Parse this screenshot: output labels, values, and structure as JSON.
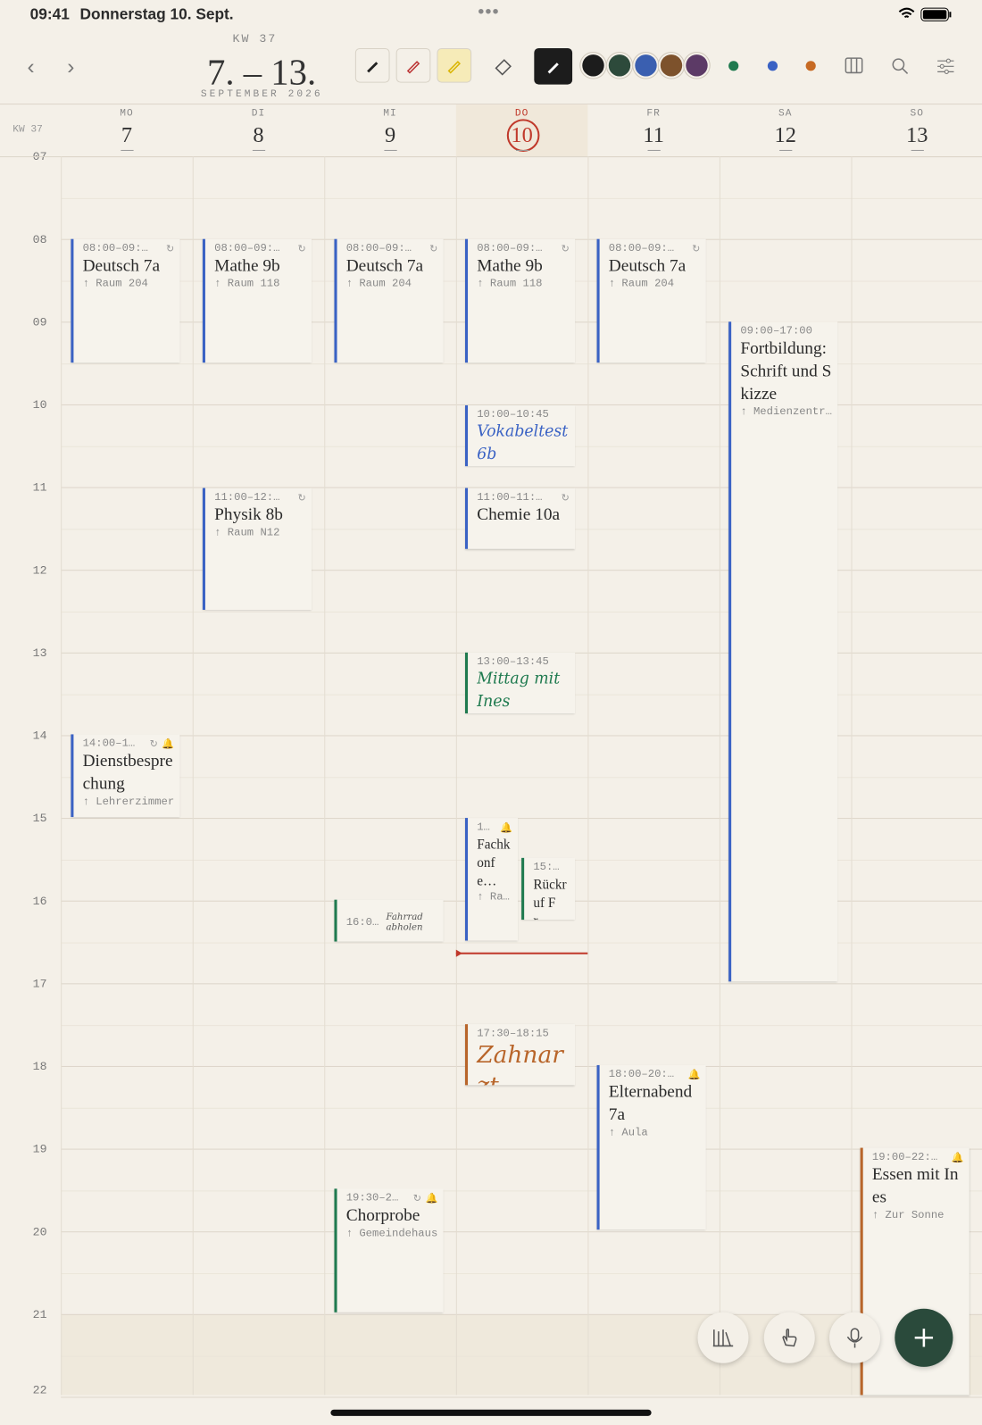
{
  "status_bar": {
    "time": "09:41",
    "date": "Donnerstag 10. Sept."
  },
  "header": {
    "week": "KW 37",
    "range": "7. – 13.",
    "month": "SEPTEMBER 2026"
  },
  "week_label": "KW 37",
  "hours": [
    "07",
    "08",
    "09",
    "10",
    "11",
    "12",
    "13",
    "14",
    "15",
    "16",
    "17",
    "18",
    "19",
    "20",
    "21",
    "22"
  ],
  "days": [
    {
      "weekday": "MO",
      "date": "7",
      "events": [
        {
          "time": "08:00–09:…",
          "title": "Deutsch 7a",
          "location": "Raum 204",
          "color": "#3a62c4",
          "repeat": true
        },
        {
          "time": "14:00–1…",
          "title": "Dienstbesprechung",
          "location": "Lehrerzimmer",
          "color": "#3a62c4",
          "repeat": true,
          "alarm": true
        }
      ]
    },
    {
      "weekday": "DI",
      "date": "8",
      "events": [
        {
          "time": "08:00–09:…",
          "title": "Mathe 9b",
          "location": "Raum 118",
          "color": "#3a62c4",
          "repeat": true
        },
        {
          "time": "11:00–12:…",
          "title": "Physik 8b",
          "location": "Raum N12",
          "color": "#3a62c4",
          "repeat": true
        }
      ]
    },
    {
      "weekday": "MI",
      "date": "9",
      "events": [
        {
          "time": "08:00–09:…",
          "title": "Deutsch 7a",
          "location": "Raum 204",
          "color": "#3a62c4",
          "repeat": true
        },
        {
          "time": "16:0…",
          "title": "Fahrrad abholen",
          "color": "#1f7a4f",
          "handwritten": true
        },
        {
          "time": "19:30–2…",
          "title": "Chorprobe",
          "location": "Gemeindehaus",
          "color": "#1f7a4f",
          "repeat": true,
          "alarm": true
        }
      ]
    },
    {
      "weekday": "DO",
      "date": "10",
      "today": true,
      "events": [
        {
          "time": "08:00–09:…",
          "title": "Mathe 9b",
          "location": "Raum 118",
          "color": "#3a62c4",
          "repeat": true
        },
        {
          "time": "10:00–10:45",
          "title": "Vokabeltest 6b",
          "color": "#3a62c4",
          "handwritten": true
        },
        {
          "time": "11:00–11:…",
          "title": "Chemie 10a",
          "color": "#3a62c4",
          "repeat": true
        },
        {
          "time": "13:00–13:45",
          "title": "Mittag mit Ines",
          "color": "#1f7a4f",
          "handwritten": true
        },
        {
          "time": "1…",
          "title": "Fachkonfe…",
          "location": "Ra…",
          "color": "#3a62c4",
          "alarm": true
        },
        {
          "time": "15:…",
          "title": "Rückruf Fr…",
          "color": "#1f7a4f"
        },
        {
          "time": "17:30–18:15",
          "title": "Zahnarzt",
          "color": "#b8652a",
          "handwritten": true
        }
      ]
    },
    {
      "weekday": "FR",
      "date": "11",
      "events": [
        {
          "time": "08:00–09:…",
          "title": "Deutsch 7a",
          "location": "Raum 204",
          "color": "#3a62c4",
          "repeat": true
        },
        {
          "time": "18:00–20:…",
          "title": "Elternabend 7a",
          "location": "Aula",
          "color": "#3a62c4",
          "alarm": true
        }
      ]
    },
    {
      "weekday": "SA",
      "date": "12",
      "events": [
        {
          "time": "09:00–17:00",
          "title": "Fortbildung: Schrift und Skizze",
          "location": "Medienzentr…",
          "color": "#3a62c4"
        }
      ]
    },
    {
      "weekday": "SO",
      "date": "13",
      "events": [
        {
          "time": "19:00–22:…",
          "title": "Essen mit Ines",
          "location": "Zur Sonne",
          "color": "#b8652a",
          "alarm": true
        }
      ]
    }
  ]
}
